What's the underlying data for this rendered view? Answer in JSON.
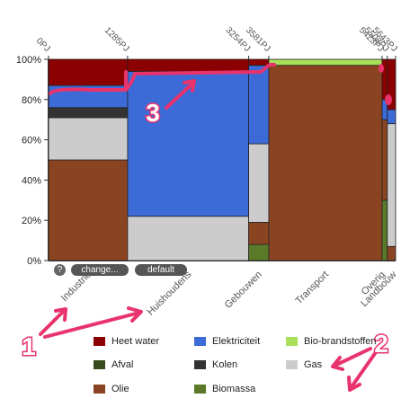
{
  "chart_data": {
    "type": "mekko",
    "y_ticks": [
      "100%",
      "80%",
      "60%",
      "40%",
      "20%",
      "0%"
    ],
    "top_ticks": [
      "0PJ",
      "1285PJ",
      "3254PJ",
      "3581PJ",
      "5423PJ",
      "5508PJ",
      "5643PJ"
    ],
    "categories": [
      {
        "name": "Industrie",
        "x_start": 0,
        "x_end": 1285,
        "segments": {
          "olie": 0.5,
          "gas": 0.21,
          "kolen": 0.05,
          "elektriciteit": 0.11,
          "heet_water": 0.13
        }
      },
      {
        "name": "Huishoudens",
        "x_start": 1285,
        "x_end": 3254,
        "segments": {
          "gas": 0.22,
          "elektriciteit": 0.72,
          "heet_water": 0.06
        }
      },
      {
        "name": "Gebouwen",
        "x_start": 3254,
        "x_end": 3581,
        "segments": {
          "biomassa": 0.08,
          "olie": 0.11,
          "gas": 0.39,
          "elektriciteit": 0.39,
          "heet_water": 0.03
        }
      },
      {
        "name": "Transport",
        "x_start": 3581,
        "x_end": 5423,
        "segments": {
          "olie": 0.97,
          "bio_brandstoffen": 0.03
        }
      },
      {
        "name": "Overig",
        "x_start": 5423,
        "x_end": 5508,
        "segments": {
          "biomassa": 0.3,
          "olie": 0.4,
          "elektriciteit": 0.1,
          "heet_water": 0.2
        }
      },
      {
        "name": "Landbouw",
        "x_start": 5508,
        "x_end": 5643,
        "segments": {
          "olie": 0.07,
          "gas": 0.61,
          "elektriciteit": 0.07,
          "heet_water": 0.25
        }
      }
    ],
    "legend": [
      {
        "key": "heet_water",
        "label": "Heet water",
        "color": "#8b0000"
      },
      {
        "key": "elektriciteit",
        "label": "Elektriciteit",
        "color": "#3c6ad6"
      },
      {
        "key": "bio_brandstoffen",
        "label": "Bio-brandstoffen",
        "color": "#a8e05a"
      },
      {
        "key": "afval",
        "label": "Afval",
        "color": "#3a4a1f"
      },
      {
        "key": "kolen",
        "label": "Kolen",
        "color": "#333333"
      },
      {
        "key": "gas",
        "label": "Gas",
        "color": "#cccccc"
      },
      {
        "key": "olie",
        "label": "Olie",
        "color": "#8b4422"
      },
      {
        "key": "biomassa",
        "label": "Biomassa",
        "color": "#5a7a2a"
      }
    ],
    "stack_order": [
      "biomassa",
      "olie",
      "afval",
      "gas",
      "kolen",
      "bio_brandstoffen",
      "elektriciteit",
      "heet_water"
    ]
  },
  "controls": {
    "help": "?",
    "change": "change...",
    "default": "default"
  },
  "annotations": [
    {
      "label": "1",
      "color": "#e8336d"
    },
    {
      "label": "2",
      "color": "#e8336d"
    },
    {
      "label": "3",
      "color": "#e8336d"
    }
  ]
}
